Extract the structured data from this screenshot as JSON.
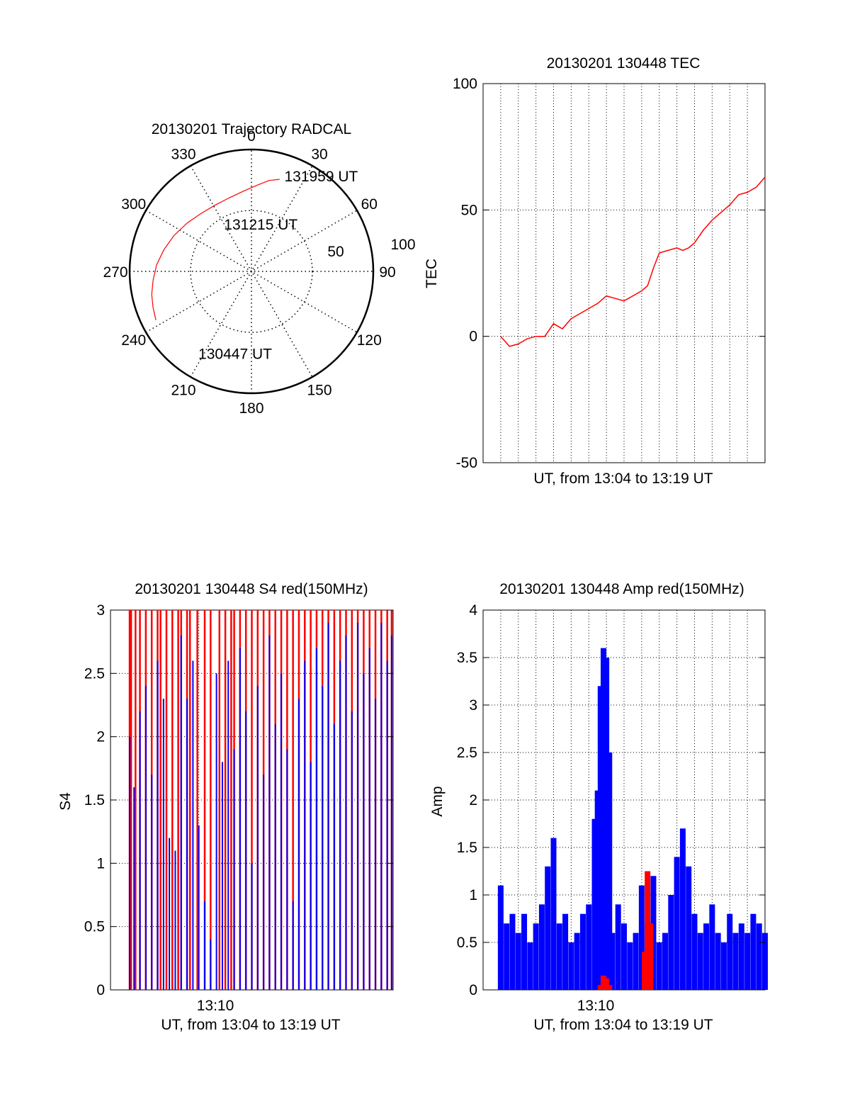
{
  "chart_data": [
    {
      "type": "polar",
      "title": "20130201 Trajectory RADCAL",
      "angle_ticks": [
        "0",
        "30",
        "60",
        "90",
        "120",
        "150",
        "180",
        "210",
        "240",
        "270",
        "300",
        "330"
      ],
      "radius_ticks": [
        "50",
        "100"
      ],
      "rlim": [
        0,
        100
      ],
      "grid": true,
      "series": [
        {
          "color": "#ff0000",
          "points": [
            {
              "az": 243,
              "r": 88
            },
            {
              "az": 250,
              "r": 86
            },
            {
              "az": 257,
              "r": 84
            },
            {
              "az": 265,
              "r": 81
            },
            {
              "az": 274,
              "r": 78
            },
            {
              "az": 284,
              "r": 74
            },
            {
              "az": 295,
              "r": 70
            },
            {
              "az": 307,
              "r": 66
            },
            {
              "az": 319,
              "r": 63
            },
            {
              "az": 331,
              "r": 62
            },
            {
              "az": 343,
              "r": 63
            },
            {
              "az": 354,
              "r": 66
            },
            {
              "az": 4,
              "r": 71
            },
            {
              "az": 11,
              "r": 76
            },
            {
              "az": 17,
              "r": 79
            }
          ]
        }
      ],
      "annotations": [
        {
          "text": "131959 UT",
          "az": 19,
          "r": 83
        },
        {
          "text": "131215 UT",
          "az": 330,
          "r": 45
        },
        {
          "text": "130447 UT",
          "az": 213,
          "r": 80
        }
      ]
    },
    {
      "type": "line",
      "title": "20130201 130448 TEC",
      "xlabel": "UT, from 13:04 to 13:19 UT",
      "ylabel": "TEC",
      "ylim": [
        -50,
        100
      ],
      "y_ticks": [
        "-50",
        "0",
        "50",
        "100"
      ],
      "xlim": [
        "13:03:00",
        "13:19:00"
      ],
      "grid": true,
      "series": [
        {
          "color": "#ff0000",
          "x": [
            "13:04:00",
            "13:04:30",
            "13:05:00",
            "13:05:30",
            "13:06:00",
            "13:06:30",
            "13:07:00",
            "13:07:30",
            "13:08:00",
            "13:08:30",
            "13:09:00",
            "13:09:30",
            "13:10:00",
            "13:10:30",
            "13:11:00",
            "13:11:30",
            "13:12:00",
            "13:12:20",
            "13:12:40",
            "13:13:00",
            "13:13:30",
            "13:14:00",
            "13:14:20",
            "13:14:40",
            "13:15:00",
            "13:15:30",
            "13:16:00",
            "13:16:30",
            "13:17:00",
            "13:17:30",
            "13:18:00",
            "13:18:30",
            "13:19:00"
          ],
          "y": [
            0,
            -4,
            -3,
            -1,
            0,
            0,
            5,
            3,
            7,
            9,
            11,
            13,
            16,
            15,
            14,
            16,
            18,
            20,
            27,
            33,
            34,
            35,
            34,
            35,
            37,
            42,
            46,
            49,
            52,
            56,
            57,
            59,
            63
          ]
        }
      ]
    },
    {
      "type": "bar",
      "title": "20130201 130448 S4 red(150MHz)",
      "xlabel": "UT, from 13:04 to 13:19 UT",
      "ylabel": "S4",
      "ylim": [
        0,
        3
      ],
      "y_ticks": [
        "0",
        "0.5",
        "1",
        "1.5",
        "2",
        "2.5",
        "3"
      ],
      "x_ticks": [
        "13:10"
      ],
      "xlim": [
        "13:03:00",
        "13:19:00"
      ],
      "grid": true,
      "series": [
        {
          "color": "#ff0000",
          "x": [
            "13:04:05",
            "13:04:10",
            "13:04:25",
            "13:04:40",
            "13:05:00",
            "13:05:20",
            "13:05:40",
            "13:05:50",
            "13:06:10",
            "13:06:30",
            "13:06:50",
            "13:07:00",
            "13:07:20",
            "13:07:30",
            "13:07:55",
            "13:08:20",
            "13:08:40",
            "13:09:10",
            "13:09:30",
            "13:09:50",
            "13:10:00",
            "13:10:20",
            "13:10:40",
            "13:11:00",
            "13:11:20",
            "13:11:40",
            "13:12:00",
            "13:12:20",
            "13:12:40",
            "13:13:00",
            "13:13:20",
            "13:13:40",
            "13:14:00",
            "13:14:20",
            "13:14:40",
            "13:15:00",
            "13:15:20",
            "13:15:40",
            "13:16:00",
            "13:16:20",
            "13:16:40",
            "13:17:00",
            "13:17:20",
            "13:17:40",
            "13:18:00",
            "13:18:20",
            "13:18:40",
            "13:18:55"
          ],
          "y": [
            3,
            3,
            3,
            3,
            3,
            3,
            3,
            3,
            3,
            3,
            3,
            3,
            3,
            3,
            3,
            3,
            3,
            3,
            3,
            3,
            3,
            3,
            3,
            3,
            3,
            3,
            3,
            3,
            3,
            3,
            3,
            3,
            3,
            3,
            3,
            3,
            3,
            3,
            3,
            3,
            3,
            3,
            3,
            3,
            3,
            3,
            3,
            3
          ]
        },
        {
          "color": "#0000ff",
          "x": [
            "13:04:05",
            "13:04:20",
            "13:04:40",
            "13:05:00",
            "13:05:20",
            "13:05:40",
            "13:06:00",
            "13:06:20",
            "13:06:40",
            "13:07:00",
            "13:07:20",
            "13:07:40",
            "13:08:00",
            "13:08:20",
            "13:08:40",
            "13:09:00",
            "13:09:20",
            "13:09:40",
            "13:10:00",
            "13:10:20",
            "13:10:40",
            "13:11:00",
            "13:11:20",
            "13:11:40",
            "13:12:00",
            "13:12:20",
            "13:12:40",
            "13:13:00",
            "13:13:20",
            "13:13:40",
            "13:14:00",
            "13:14:20",
            "13:14:40",
            "13:15:00",
            "13:15:20",
            "13:15:40",
            "13:16:00",
            "13:16:20",
            "13:16:40",
            "13:17:00",
            "13:17:20",
            "13:17:40",
            "13:18:00",
            "13:18:20",
            "13:18:40",
            "13:18:55"
          ],
          "y": [
            2.0,
            1.6,
            2.2,
            2.4,
            1.7,
            2.6,
            2.3,
            1.2,
            1.1,
            2.8,
            2.3,
            2.6,
            1.3,
            0.7,
            0.4,
            2.5,
            1.8,
            2.6,
            1.9,
            2.7,
            2.2,
            1.0,
            2.4,
            1.7,
            2.8,
            2.1,
            2.5,
            1.9,
            0.7,
            2.3,
            2.6,
            1.8,
            2.7,
            2.4,
            2.9,
            2.1,
            2.6,
            2.8,
            2.2,
            2.9,
            2.5,
            2.7,
            2.3,
            2.9,
            2.6,
            2.8
          ]
        }
      ]
    },
    {
      "type": "bar",
      "title": "20130201 130448 Amp red(150MHz)",
      "xlabel": "UT, from 13:04 to 13:19 UT",
      "ylabel": "Amp",
      "ylim": [
        0,
        4
      ],
      "y_ticks": [
        "0",
        "0.5",
        "1",
        "1.5",
        "2",
        "2.5",
        "3",
        "3.5",
        "4"
      ],
      "x_ticks": [
        "13:10"
      ],
      "xlim": [
        "13:03:00",
        "13:19:00"
      ],
      "grid": true,
      "series": [
        {
          "color": "#0000ff",
          "x": [
            "13:04:00",
            "13:04:20",
            "13:04:40",
            "13:05:00",
            "13:05:20",
            "13:05:40",
            "13:06:00",
            "13:06:20",
            "13:06:40",
            "13:07:00",
            "13:07:20",
            "13:07:40",
            "13:08:00",
            "13:08:20",
            "13:08:40",
            "13:09:00",
            "13:09:20",
            "13:09:30",
            "13:09:40",
            "13:09:50",
            "13:10:00",
            "13:10:10",
            "13:10:20",
            "13:10:40",
            "13:11:00",
            "13:11:20",
            "13:11:40",
            "13:12:00",
            "13:12:20",
            "13:12:40",
            "13:13:00",
            "13:13:20",
            "13:13:40",
            "13:14:00",
            "13:14:20",
            "13:14:40",
            "13:15:00",
            "13:15:20",
            "13:15:40",
            "13:16:00",
            "13:16:20",
            "13:16:40",
            "13:17:00",
            "13:17:20",
            "13:17:40",
            "13:18:00",
            "13:18:20",
            "13:18:40",
            "13:19:00"
          ],
          "y": [
            1.1,
            0.7,
            0.8,
            0.6,
            0.8,
            0.5,
            0.7,
            0.9,
            1.3,
            1.6,
            0.7,
            0.8,
            0.5,
            0.6,
            0.8,
            0.9,
            1.8,
            2.1,
            3.2,
            3.6,
            3.5,
            2.5,
            0.6,
            0.9,
            0.7,
            0.5,
            0.6,
            1.1,
            0.7,
            1.2,
            0.5,
            0.6,
            1.0,
            1.4,
            1.7,
            1.3,
            0.8,
            0.6,
            0.7,
            0.9,
            0.6,
            0.5,
            0.8,
            0.6,
            0.7,
            0.6,
            0.8,
            0.7,
            0.6
          ]
        },
        {
          "color": "#ff0000",
          "x": [
            "13:09:40",
            "13:09:50",
            "13:10:00",
            "13:10:10",
            "13:12:10",
            "13:12:20",
            "13:12:30"
          ],
          "y": [
            0.05,
            0.15,
            0.12,
            0.05,
            0.4,
            1.25,
            0.7
          ]
        }
      ]
    }
  ]
}
